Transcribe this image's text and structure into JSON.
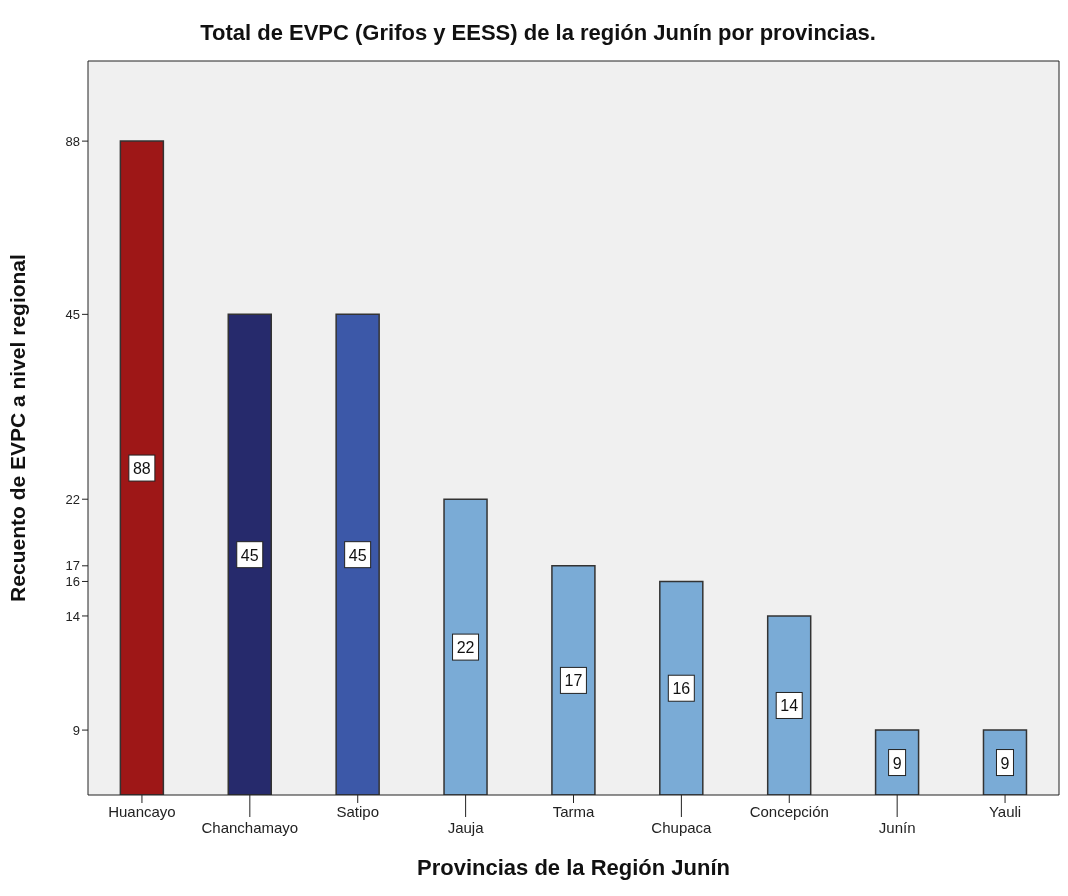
{
  "chart_data": {
    "type": "bar",
    "title": "Total de EVPC (Grifos y EESS) de la región Junín por provincias.",
    "xlabel": "Provincias de la Región Junín",
    "ylabel": "Recuento de EVPC a nivel regional",
    "categories": [
      "Huancayo",
      "Chanchamayo",
      "Satipo",
      "Jauja",
      "Tarma",
      "Chupaca",
      "Concepción",
      "Junín",
      "Yauli"
    ],
    "values": [
      88,
      45,
      45,
      22,
      17,
      16,
      14,
      9,
      9
    ],
    "data_labels": true,
    "log": true,
    "colors": [
      "#9e1717",
      "#262a6c",
      "#3c58a8",
      "#7aabd6",
      "#7aabd6",
      "#7aabd6",
      "#7aabd6",
      "#7aabd6",
      "#7aabd6"
    ],
    "ylim": [
      7,
      120
    ],
    "yticks": [
      9,
      14,
      16,
      17,
      22,
      45,
      88
    ],
    "grid": false,
    "legend": false
  }
}
